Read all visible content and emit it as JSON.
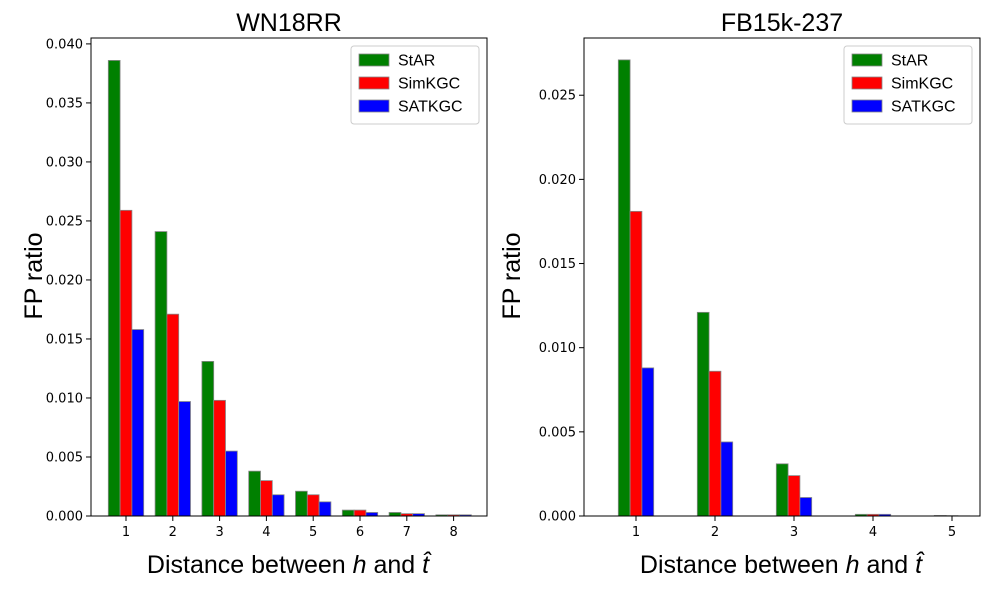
{
  "chart_data": [
    {
      "type": "bar",
      "title": "WN18RR",
      "xlabel_prefix": "Distance between ",
      "xlabel_h": "h",
      "xlabel_and": " and ",
      "xlabel_t": "t̂",
      "ylabel": "FP ratio",
      "categories": [
        "1",
        "2",
        "3",
        "4",
        "5",
        "6",
        "7",
        "8"
      ],
      "series": [
        {
          "name": "StAR",
          "color": "#008000",
          "values": [
            0.0386,
            0.0241,
            0.0131,
            0.0038,
            0.0021,
            0.0005,
            0.0003,
            0.0001
          ]
        },
        {
          "name": "SimKGC",
          "color": "#ff0000",
          "values": [
            0.0259,
            0.0171,
            0.0098,
            0.003,
            0.0018,
            0.0005,
            0.0002,
            0.0001
          ]
        },
        {
          "name": "SATKGC",
          "color": "#0000ff",
          "values": [
            0.0158,
            0.0097,
            0.0055,
            0.0018,
            0.0012,
            0.0003,
            0.0002,
            0.0001
          ]
        }
      ],
      "ylim": [
        0,
        0.0405
      ],
      "yticks": [
        "0.000",
        "0.005",
        "0.010",
        "0.015",
        "0.020",
        "0.025",
        "0.030",
        "0.035",
        "0.040"
      ],
      "ytick_values": [
        0,
        0.005,
        0.01,
        0.015,
        0.02,
        0.025,
        0.03,
        0.035,
        0.04
      ],
      "legend": "top-right"
    },
    {
      "type": "bar",
      "title": "FB15k-237",
      "xlabel_prefix": "Distance between ",
      "xlabel_h": "h",
      "xlabel_and": " and ",
      "xlabel_t": "t̂",
      "ylabel": "FP ratio",
      "categories": [
        "1",
        "2",
        "3",
        "4",
        "5"
      ],
      "series": [
        {
          "name": "StAR",
          "color": "#008000",
          "values": [
            0.0271,
            0.0121,
            0.0031,
            0.0001,
            3e-05
          ]
        },
        {
          "name": "SimKGC",
          "color": "#ff0000",
          "values": [
            0.0181,
            0.0086,
            0.0024,
            0.0001,
            2e-05
          ]
        },
        {
          "name": "SATKGC",
          "color": "#0000ff",
          "values": [
            0.0088,
            0.0044,
            0.0011,
            0.0001,
            1e-05
          ]
        }
      ],
      "ylim": [
        0,
        0.0284
      ],
      "yticks": [
        "0.000",
        "0.005",
        "0.010",
        "0.015",
        "0.020",
        "0.025"
      ],
      "ytick_values": [
        0,
        0.005,
        0.01,
        0.015,
        0.02,
        0.025
      ],
      "legend": "top-right"
    }
  ]
}
